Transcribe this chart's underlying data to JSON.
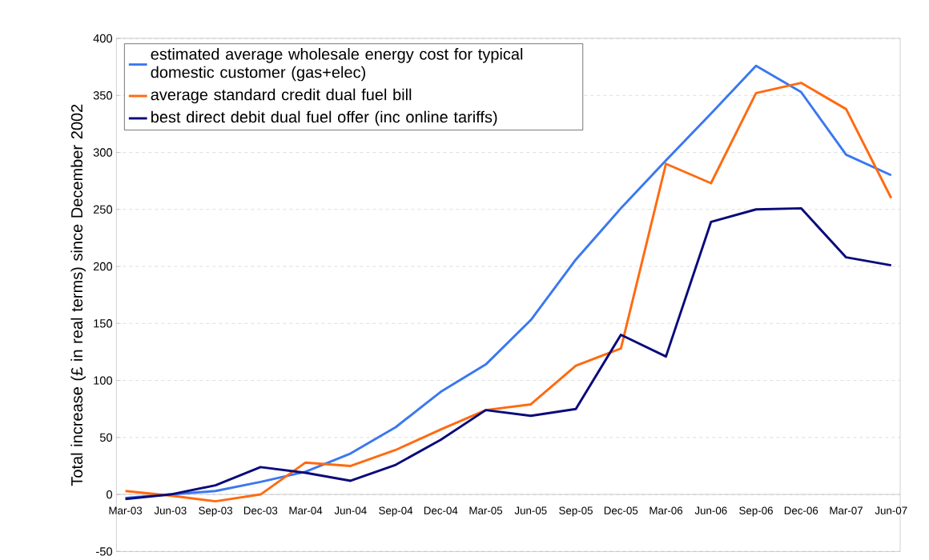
{
  "chart_data": {
    "type": "line",
    "ylabel": "Total increase (£ in real terms) since December 2002",
    "categories": [
      "Mar-03",
      "Jun-03",
      "Sep-03",
      "Dec-03",
      "Mar-04",
      "Jun-04",
      "Sep-04",
      "Dec-04",
      "Mar-05",
      "Jun-05",
      "Sep-05",
      "Dec-05",
      "Mar-06",
      "Jun-06",
      "Sep-06",
      "Dec-06",
      "Mar-07",
      "Jun-07"
    ],
    "series": [
      {
        "name": "estimated average wholesale energy cost for typical domestic customer (gas+elec)",
        "color": "#3a78f0",
        "values": [
          -3,
          0,
          3,
          11,
          20,
          36,
          59,
          90,
          114,
          153,
          206,
          251,
          293,
          334,
          376,
          353,
          298,
          280
        ]
      },
      {
        "name": "average standard credit dual fuel bill",
        "color": "#ff6a10",
        "values": [
          3,
          -1,
          -6,
          0,
          28,
          25,
          39,
          57,
          74,
          79,
          113,
          128,
          290,
          273,
          352,
          361,
          338,
          260
        ]
      },
      {
        "name": "best direct debit dual fuel offer (inc online tariffs)",
        "color": "#0a0a7a",
        "values": [
          -4,
          0,
          8,
          24,
          19,
          12,
          26,
          48,
          74,
          69,
          75,
          140,
          121,
          239,
          250,
          251,
          208,
          201
        ]
      }
    ],
    "ylim": [
      -50,
      400
    ],
    "yticks": [
      -50,
      0,
      50,
      100,
      150,
      200,
      250,
      300,
      350,
      400
    ],
    "grid": "y",
    "legend": "top left",
    "marker": "none",
    "line_style": "solid"
  }
}
